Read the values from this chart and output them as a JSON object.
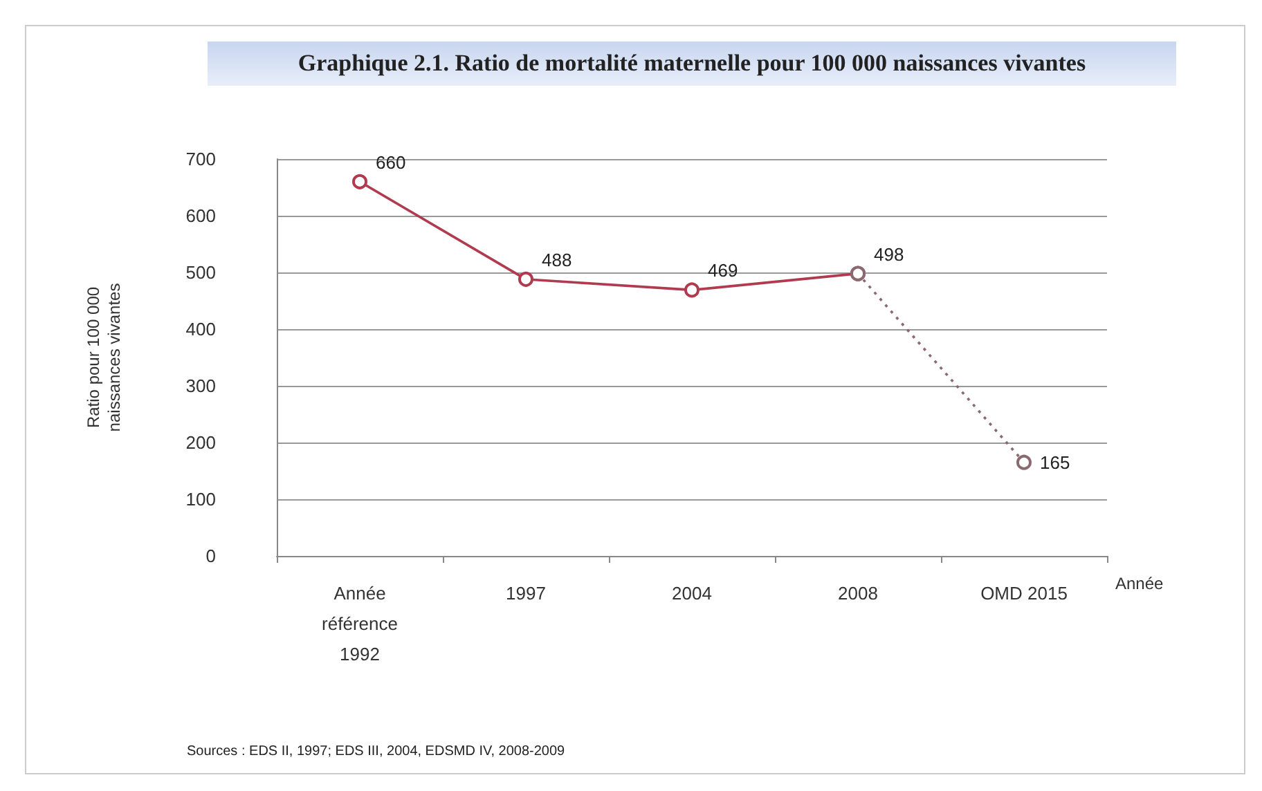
{
  "chart_data": {
    "type": "line",
    "title": "Graphique 2.1. Ratio de mortalité maternelle pour 100 000 naissances vivantes",
    "xlabel": "Année",
    "ylabel": "Ratio pour 100 000\nnaissances vivantes",
    "categories": [
      "Année\nréférence\n1992",
      "1997",
      "2004",
      "2008",
      "OMD 2015"
    ],
    "series": [
      {
        "color": "#b03a4e",
        "values": [
          660,
          488,
          469,
          498,
          null
        ],
        "line_style": "solid",
        "value_labels": [
          "660",
          "488",
          "469",
          "498",
          null
        ]
      },
      {
        "color": "#8a6a70",
        "values": [
          null,
          null,
          null,
          498,
          165
        ],
        "line_style": "dotted",
        "value_labels": [
          null,
          null,
          null,
          null,
          "165"
        ]
      }
    ],
    "ylim": [
      0,
      700
    ],
    "yticks": [
      0,
      100,
      200,
      300,
      400,
      500,
      600,
      700
    ],
    "grid": "y",
    "marker": "circle",
    "annotations": [
      "Sources : EDS II, 1997; EDS III, 2004, EDSMD IV, 2008-2009"
    ]
  }
}
